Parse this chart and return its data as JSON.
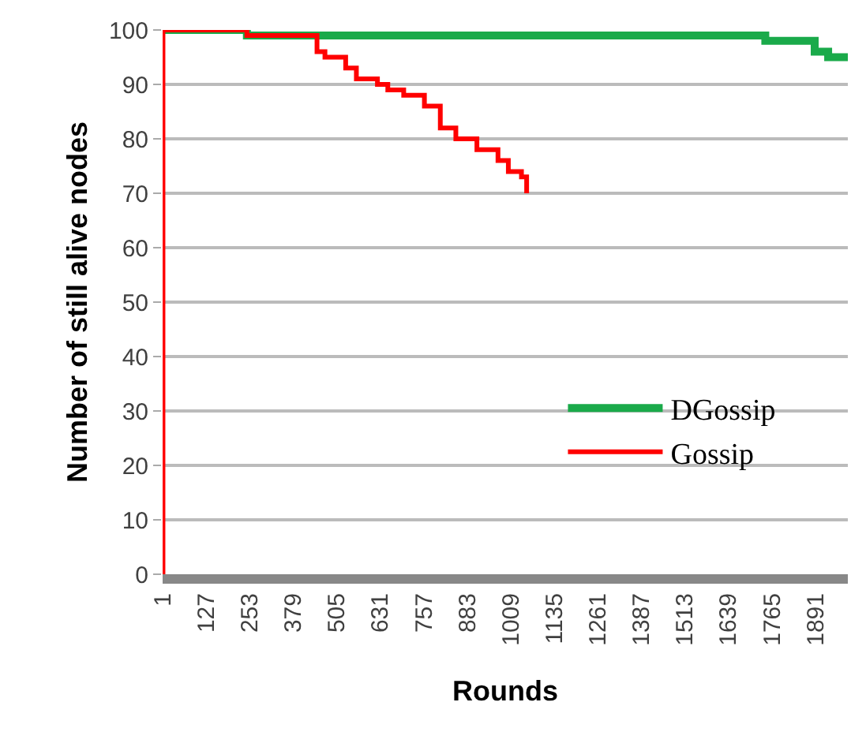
{
  "chart_data": {
    "type": "step",
    "xlabel": "Rounds",
    "ylabel": "Number of still alive nodes",
    "xlim": [
      1,
      1985
    ],
    "xticks": [
      1,
      127,
      253,
      379,
      505,
      631,
      757,
      883,
      1009,
      1135,
      1261,
      1387,
      1513,
      1639,
      1765,
      1891
    ],
    "ylim": [
      0,
      100
    ],
    "yticks": [
      0,
      10,
      20,
      30,
      40,
      50,
      60,
      70,
      80,
      90,
      100
    ],
    "grid": "y",
    "legend": "right",
    "line_style": "solid",
    "marker": "none",
    "series": [
      {
        "name": "DGossip",
        "color": "#1aaa4a",
        "x": [
          1,
          245,
          1746,
          1889,
          1928,
          1985
        ],
        "values": [
          100,
          99,
          98,
          96,
          95,
          95
        ]
      },
      {
        "name": "Gossip",
        "color": "#ff0000",
        "x": [
          1,
          2,
          245,
          425,
          448,
          471,
          531,
          562,
          623,
          653,
          699,
          759,
          805,
          850,
          911,
          972,
          1002,
          1040,
          1055
        ],
        "values": [
          0,
          100,
          99,
          99,
          96,
          95,
          93,
          91,
          90,
          89,
          88,
          86,
          82,
          80,
          78,
          76,
          74,
          73,
          70
        ]
      }
    ]
  }
}
